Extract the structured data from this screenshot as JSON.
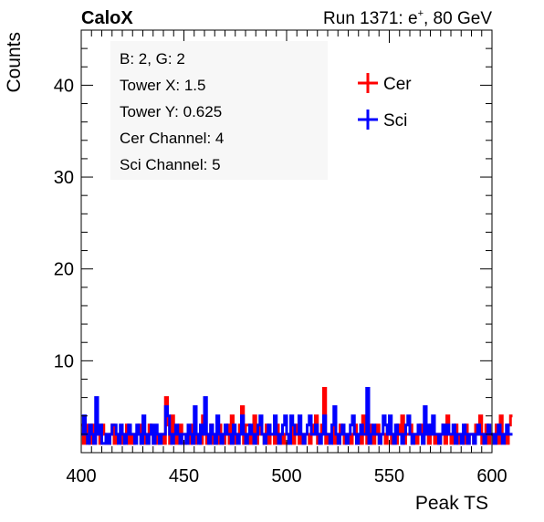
{
  "header": {
    "brand": "CaloX",
    "run_info_prefix": "Run 1371: e",
    "run_info_sup": "+",
    "run_info_suffix": ", 80 GeV"
  },
  "info_box": {
    "lines": [
      "B: 2, G: 2",
      "Tower X: 1.5",
      "Tower Y: 0.625",
      "Cer Channel: 4",
      "Sci Channel: 5"
    ]
  },
  "chart_data": {
    "type": "histogram",
    "xlabel": "Peak TS",
    "ylabel": "Counts",
    "xlim": [
      400,
      600
    ],
    "ylim": [
      0,
      46
    ],
    "ylim_visible_min": 1,
    "x_ticks": [
      400,
      450,
      500,
      550,
      600
    ],
    "y_ticks": [
      10,
      20,
      30,
      40
    ],
    "grid": false,
    "legend_placement": "top-right",
    "legend": [
      "Cer",
      "Sci"
    ],
    "colors": {
      "Cer": "#ff0000",
      "Sci": "#0000ff"
    },
    "bin_edges_start": 400,
    "bin_width": 1,
    "series": [
      {
        "name": "Cer",
        "color": "#ff0000",
        "values": [
          3,
          1,
          3,
          2,
          1,
          3,
          1,
          2,
          2,
          1,
          3,
          2,
          1,
          1,
          2,
          3,
          1,
          2,
          2,
          2,
          1,
          2,
          3,
          1,
          2,
          1,
          2,
          2,
          3,
          1,
          2,
          1,
          1,
          3,
          2,
          1,
          2,
          1,
          2,
          2,
          1,
          6,
          3,
          1,
          4,
          2,
          1,
          2,
          3,
          1,
          1,
          2,
          2,
          1,
          3,
          1,
          2,
          2,
          1,
          4,
          2,
          1,
          2,
          3,
          1,
          2,
          1,
          3,
          2,
          1,
          2,
          3,
          1,
          4,
          1,
          2,
          2,
          3,
          5,
          1,
          3,
          3,
          1,
          2,
          4,
          1,
          2,
          3,
          2,
          1,
          3,
          1,
          2,
          2,
          1,
          3,
          2,
          1,
          2,
          1,
          1,
          2,
          3,
          1,
          2,
          3,
          1,
          2,
          1,
          2,
          2,
          1,
          3,
          2,
          4,
          1,
          2,
          3,
          7,
          1,
          2,
          2,
          3,
          1,
          2,
          1,
          3,
          2,
          1,
          2,
          2,
          1,
          2,
          3,
          1,
          2,
          1,
          4,
          2,
          1,
          3,
          2,
          1,
          2,
          3,
          1,
          2,
          2,
          1,
          3,
          2,
          1,
          2,
          1,
          3,
          2,
          4,
          1,
          2,
          2,
          3,
          1,
          2,
          1,
          2,
          3,
          1,
          2,
          2,
          1,
          3,
          2,
          1,
          2,
          1,
          2,
          3,
          1,
          4,
          2,
          1,
          2,
          3,
          1,
          2,
          2,
          1,
          3,
          1,
          2,
          2,
          1,
          3,
          2,
          4,
          1,
          2,
          3,
          1,
          2,
          2,
          1,
          3,
          1,
          4,
          2,
          2,
          1,
          3,
          4
        ]
      },
      {
        "name": "Sci",
        "color": "#0000ff",
        "values": [
          2,
          4,
          2,
          1,
          3,
          2,
          1,
          6,
          2,
          3,
          1,
          1,
          2,
          1,
          2,
          3,
          3,
          2,
          1,
          3,
          2,
          1,
          2,
          3,
          2,
          2,
          1,
          3,
          2,
          1,
          4,
          2,
          1,
          2,
          3,
          1,
          3,
          2,
          1,
          2,
          2,
          5,
          4,
          2,
          1,
          2,
          3,
          2,
          1,
          2,
          2,
          1,
          3,
          2,
          1,
          5,
          2,
          1,
          3,
          2,
          6,
          2,
          1,
          3,
          2,
          1,
          4,
          2,
          1,
          2,
          3,
          2,
          2,
          1,
          3,
          2,
          1,
          2,
          4,
          2,
          1,
          2,
          3,
          2,
          1,
          2,
          3,
          4,
          2,
          1,
          2,
          3,
          2,
          2,
          4,
          2,
          1,
          2,
          3,
          4,
          2,
          1,
          4,
          3,
          2,
          2,
          4,
          2,
          1,
          2,
          3,
          4,
          2,
          2,
          3,
          2,
          1,
          2,
          4,
          2,
          2,
          1,
          3,
          5,
          2,
          1,
          2,
          3,
          2,
          1,
          2,
          3,
          4,
          2,
          1,
          2,
          3,
          2,
          2,
          7,
          1,
          2,
          3,
          2,
          2,
          1,
          2,
          4,
          3,
          2,
          4,
          2,
          1,
          3,
          2,
          2,
          1,
          2,
          3,
          4,
          2,
          1,
          2,
          2,
          3,
          2,
          1,
          5,
          2,
          3,
          2,
          4,
          2,
          2,
          1,
          2,
          3,
          2,
          3,
          2,
          2,
          3,
          1,
          2,
          2,
          1,
          3,
          2,
          1,
          2,
          2,
          1,
          2,
          3,
          2,
          2,
          1,
          2,
          3,
          2,
          2,
          1,
          2,
          3,
          2,
          1,
          2,
          3,
          2,
          2
        ]
      }
    ]
  }
}
